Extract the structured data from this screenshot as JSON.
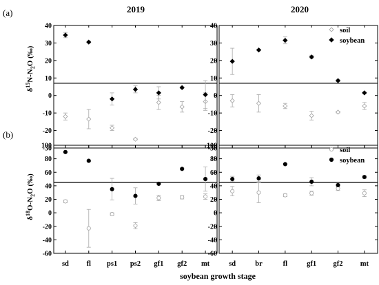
{
  "panel_labels": [
    "(a)",
    "(b)"
  ],
  "years": [
    "2019",
    "2020"
  ],
  "x_axis_label": "soybean growth stage",
  "y_labels": {
    "a": {
      "delta": "δ",
      "sup": "15",
      "main": "N-N",
      "sub": "2",
      "tail": "O (‰)"
    },
    "b": {
      "delta": "δ",
      "sup": "18",
      "main": "O-N",
      "sub": "2",
      "tail": "O (‰)"
    }
  },
  "legend": {
    "soil": "soil",
    "soybean": "soybean"
  },
  "colors": {
    "soil": "#a8a8a8",
    "soybean": "#000000",
    "axis": "#000000",
    "errorbar": "#a8a8a8"
  },
  "chart_data": [
    {
      "id": "a-2019",
      "type": "scatter",
      "row": 0,
      "col": 0,
      "title": "2019",
      "categories": [
        "sd",
        "fl",
        "ps1",
        "ps2",
        "gf1",
        "gf2",
        "mt"
      ],
      "ylim": [
        -30,
        40
      ],
      "yticks": [
        -30,
        -20,
        -10,
        0,
        10,
        20,
        30,
        40
      ],
      "hline": 7,
      "marker_soil": "diamond",
      "series": [
        {
          "name": "soil",
          "values": [
            -12,
            -13.5,
            -18.5,
            -25,
            -4,
            -6.5,
            -3.5
          ],
          "errors": [
            2,
            5.5,
            1.5,
            0.5,
            4,
            3,
            5
          ]
        },
        {
          "name": "soybean",
          "values": [
            34.5,
            30.5,
            -2,
            3.5,
            1.5,
            4.5,
            0.5
          ],
          "errors": [
            1.5,
            0.5,
            3.5,
            2,
            3.5,
            0.5,
            8
          ]
        }
      ]
    },
    {
      "id": "a-2020",
      "type": "scatter",
      "row": 0,
      "col": 1,
      "title": "2020",
      "categories": [
        "sd",
        "br",
        "fl",
        "gf1",
        "gf2",
        "mt"
      ],
      "ylim": [
        -30,
        40
      ],
      "yticks": [
        -30,
        -20,
        -10,
        0,
        10,
        20,
        30,
        40
      ],
      "hline": 7,
      "marker_soil": "diamond",
      "legend_position": "top-right",
      "series": [
        {
          "name": "soil",
          "values": [
            -3,
            -4.5,
            -6,
            -11.5,
            -9.5,
            -6
          ],
          "errors": [
            3.5,
            5,
            1.5,
            2.5,
            0.5,
            2
          ]
        },
        {
          "name": "soybean",
          "values": [
            19.5,
            26,
            31.5,
            22,
            8.5,
            1.5
          ],
          "errors": [
            7.5,
            0.5,
            2,
            1,
            0.5,
            0.5
          ]
        }
      ]
    },
    {
      "id": "b-2019",
      "type": "scatter",
      "row": 1,
      "col": 0,
      "categories": [
        "sd",
        "fl",
        "ps1",
        "ps2",
        "gf1",
        "gf2",
        "mt"
      ],
      "ylim": [
        -60,
        100
      ],
      "yticks": [
        -60,
        -40,
        -20,
        0,
        20,
        40,
        60,
        80,
        100
      ],
      "hline": 45,
      "marker_soil": "circle",
      "series": [
        {
          "name": "soil",
          "values": [
            17,
            -23,
            -2,
            -19,
            22,
            23,
            24
          ],
          "errors": [
            2,
            28,
            2,
            4.5,
            4,
            2.5,
            4
          ]
        },
        {
          "name": "soybean",
          "values": [
            90,
            77,
            35,
            25,
            43,
            65,
            50
          ],
          "errors": [
            1,
            1,
            16,
            12,
            1,
            1,
            18
          ]
        }
      ]
    },
    {
      "id": "b-2020",
      "type": "scatter",
      "row": 1,
      "col": 1,
      "categories": [
        "sd",
        "br",
        "fl",
        "gf1",
        "gf2",
        "mt"
      ],
      "ylim": [
        -60,
        100
      ],
      "yticks": [
        -60,
        -40,
        -20,
        0,
        20,
        40,
        60,
        80,
        100
      ],
      "hline": 45,
      "marker_soil": "circle",
      "legend_position": "top-right",
      "series": [
        {
          "name": "soil",
          "values": [
            32,
            30,
            26,
            29,
            36,
            29
          ],
          "errors": [
            7,
            15,
            2,
            3,
            3,
            5
          ]
        },
        {
          "name": "soybean",
          "values": [
            50,
            51,
            72,
            46,
            41,
            53
          ],
          "errors": [
            4,
            5,
            1,
            6,
            2,
            2
          ]
        }
      ]
    }
  ]
}
